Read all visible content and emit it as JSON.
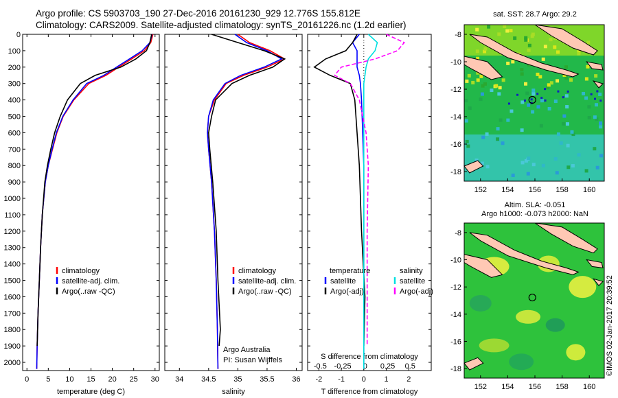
{
  "header": {
    "title_line1": "Argo profile: CS 5903703_190 27-Dec-2016 20161230_929 12.776S 155.812E",
    "title_line2": "Climatology: CARS2009. Satellite-adjusted climatology: synTS_20161226.nc (1.2d earlier)"
  },
  "maps": {
    "sst_title": "sat. SST: 28.7 Argo: 29.2",
    "sla_title_1": "Altim. SLA: -0.051",
    "sla_title_2": "Argo h1000: -0.073 h2000: NaN",
    "lon_ticks": [
      "152",
      "154",
      "156",
      "158",
      "160"
    ],
    "lat_ticks": [
      "-8",
      "-10",
      "-12",
      "-14",
      "-16",
      "-18"
    ],
    "float_position": {
      "lon": 155.812,
      "lat": -12.776
    },
    "colors": {
      "land": "#ffc8b4",
      "sst_bg": "#22b84a",
      "sla_bg": "#2ec23c"
    }
  },
  "credit": "©IMOS 02-Jan-2017 20:39:52",
  "chart_data": [
    {
      "type": "line",
      "xlabel": "temperature (deg C)",
      "ylabel": "",
      "xlim": [
        -1,
        31
      ],
      "ylim": [
        2050,
        0
      ],
      "xticks": [
        0,
        5,
        10,
        15,
        20,
        25,
        30
      ],
      "yticks": [
        0,
        100,
        200,
        300,
        400,
        500,
        600,
        700,
        800,
        900,
        1000,
        1100,
        1200,
        1300,
        1400,
        1500,
        1600,
        1700,
        1800,
        1900,
        2000
      ],
      "legend": [
        "climatology",
        "satellite-adj. clim.",
        "Argo(..raw -QC)"
      ],
      "series": [
        {
          "name": "climatology",
          "color": "#ff0000",
          "x": [
            29.5,
            29.0,
            27.5,
            24.5,
            21.5,
            18.5,
            14.5,
            11.0,
            8.5,
            7.0,
            6.0,
            5.0,
            4.3,
            3.6,
            3.2,
            2.9,
            2.6,
            2.4,
            2.3
          ],
          "y": [
            0,
            50,
            100,
            150,
            200,
            250,
            300,
            400,
            500,
            600,
            700,
            800,
            900,
            1100,
            1300,
            1500,
            1700,
            1900,
            2040
          ]
        },
        {
          "name": "satellite-adj. clim.",
          "color": "#0000ff",
          "x": [
            29.3,
            28.8,
            27.0,
            24.0,
            21.0,
            18.0,
            14.0,
            10.8,
            8.4,
            6.9,
            5.9,
            5.0,
            4.3,
            3.6,
            3.2,
            2.9,
            2.6,
            2.4,
            2.3
          ],
          "y": [
            0,
            50,
            100,
            150,
            200,
            250,
            300,
            400,
            500,
            600,
            700,
            800,
            900,
            1100,
            1300,
            1500,
            1700,
            1900,
            2040
          ]
        },
        {
          "name": "Argo(..raw -QC)",
          "color": "#000000",
          "x": [
            29.2,
            28.8,
            28.0,
            25.5,
            22.0,
            16.0,
            12.5,
            9.5,
            7.8,
            6.5,
            5.6,
            4.8,
            4.2,
            3.6,
            3.2,
            2.9,
            2.6,
            2.4
          ],
          "y": [
            0,
            50,
            100,
            150,
            200,
            250,
            300,
            400,
            500,
            600,
            700,
            800,
            900,
            1100,
            1300,
            1500,
            1700,
            1900
          ]
        }
      ]
    },
    {
      "type": "line",
      "xlabel": "salinity",
      "ylabel": "",
      "xlim": [
        33.75,
        36.1
      ],
      "ylim": [
        2050,
        0
      ],
      "xticks": [
        34,
        34.5,
        35,
        35.5,
        36
      ],
      "legend": [
        "climatology",
        "satellite-adj. clim.",
        "Argo(..raw -QC)"
      ],
      "annotations": [
        "Argo Australia",
        "PI: Susan Wijffels"
      ],
      "series": [
        {
          "name": "climatology",
          "color": "#ff0000",
          "x": [
            35.0,
            35.2,
            35.55,
            35.8,
            35.5,
            35.1,
            34.8,
            34.6,
            34.5,
            34.48,
            34.5,
            34.55,
            34.6,
            34.63,
            34.65,
            34.66
          ],
          "y": [
            0,
            50,
            100,
            150,
            200,
            250,
            300,
            400,
            500,
            600,
            700,
            900,
            1200,
            1500,
            1800,
            2040
          ]
        },
        {
          "name": "satellite-adj. clim.",
          "color": "#0000ff",
          "x": [
            34.95,
            35.15,
            35.5,
            35.75,
            35.45,
            35.05,
            34.78,
            34.58,
            34.5,
            34.48,
            34.5,
            34.55,
            34.6,
            34.63,
            34.65,
            34.66
          ],
          "y": [
            0,
            50,
            100,
            150,
            200,
            250,
            300,
            400,
            500,
            600,
            700,
            900,
            1200,
            1500,
            1800,
            2040
          ]
        },
        {
          "name": "Argo(..raw -QC)",
          "color": "#000000",
          "x": [
            34.55,
            35.0,
            35.45,
            35.8,
            35.6,
            35.2,
            34.9,
            34.62,
            34.55,
            34.5,
            34.52,
            34.57,
            34.63,
            34.66,
            34.7,
            34.68
          ],
          "y": [
            0,
            50,
            100,
            150,
            200,
            250,
            300,
            400,
            500,
            600,
            700,
            900,
            1200,
            1500,
            1800,
            1900
          ]
        }
      ]
    },
    {
      "type": "line",
      "xlabel": "T difference from climatology",
      "title2": "S difference from climatology",
      "xlim": [
        -2.5,
        3.0
      ],
      "ylim": [
        2050,
        0
      ],
      "xticks_T": [
        -2,
        -1,
        0,
        1,
        2
      ],
      "xticks_S": [
        "-0.5",
        "-0.25",
        "0",
        "0.25",
        "0.5"
      ],
      "xticks_S_pos": [
        -2,
        -1,
        0,
        1,
        2
      ],
      "legend_T": {
        "title": "temperature",
        "items": [
          "satellite",
          "Argo(-adj)"
        ]
      },
      "legend_S": {
        "title": "salinity",
        "items": [
          "satellite",
          "Argo(-adj)"
        ]
      },
      "series": [
        {
          "name": "T satellite",
          "color": "#0000ff",
          "x": [
            -0.2,
            -0.5,
            -0.3,
            -0.3,
            -0.3,
            -0.2,
            -0.15,
            -0.1,
            -0.05,
            0,
            0,
            0,
            0
          ],
          "y": [
            0,
            50,
            100,
            150,
            200,
            250,
            300,
            400,
            600,
            800,
            1200,
            1600,
            2040
          ]
        },
        {
          "name": "T Argo(-adj)",
          "color": "#000000",
          "x": [
            -0.3,
            -0.5,
            -0.8,
            -1.7,
            -2.2,
            -1.5,
            -0.6,
            -0.4,
            -0.3,
            -0.2,
            -0.1,
            0.05,
            0
          ],
          "y": [
            0,
            50,
            100,
            150,
            200,
            250,
            300,
            400,
            600,
            800,
            1200,
            1600,
            1900
          ]
        },
        {
          "name": "S satellite",
          "color": "#00e0e0",
          "x": [
            0.2,
            0.6,
            0.5,
            0.2,
            0.1,
            0.05,
            0,
            0,
            0,
            0,
            0,
            0,
            0
          ],
          "y": [
            0,
            50,
            100,
            150,
            200,
            250,
            300,
            400,
            600,
            800,
            1200,
            1600,
            2040
          ]
        },
        {
          "name": "S Argo(-adj)",
          "color": "#ff00ff",
          "x": [
            1.0,
            1.8,
            1.5,
            0.5,
            -1.0,
            -1.3,
            -0.6,
            -0.2,
            0.1,
            0.2,
            0.15,
            0.15,
            0.15
          ],
          "y": [
            0,
            50,
            100,
            150,
            200,
            250,
            300,
            400,
            600,
            800,
            1200,
            1600,
            1900
          ]
        }
      ]
    }
  ]
}
